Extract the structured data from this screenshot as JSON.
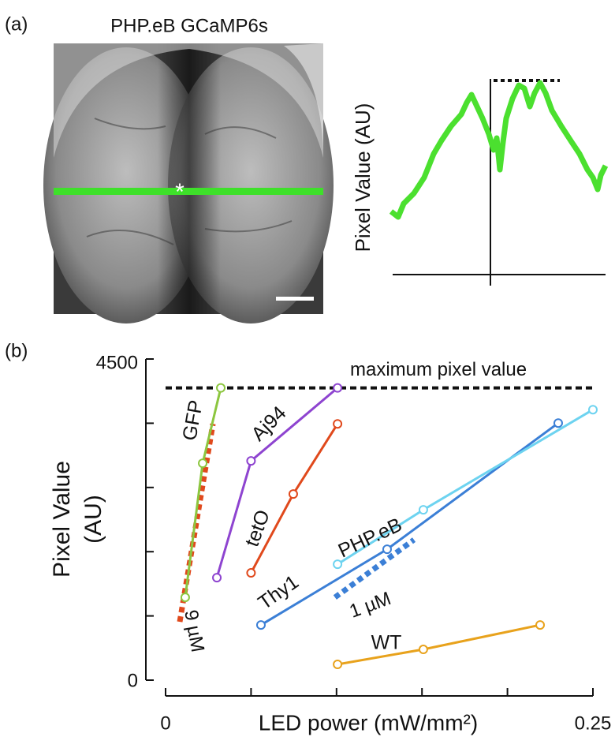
{
  "panel_a": {
    "label": "(a)",
    "title": "PHP.eB GCaMP6s",
    "ylabel": "Pixel Value (AU)"
  },
  "chart_data": {
    "type": "line",
    "label": "(b)",
    "xlabel": "LED power (mW/mm²)",
    "ylabel": [
      "Pixel Value",
      "(AU)"
    ],
    "xlim": [
      0,
      0.25
    ],
    "xticks": [
      0,
      0.25
    ],
    "xticks_minor": [
      0.05,
      0.1,
      0.15,
      0.2
    ],
    "ylim": [
      0,
      4500
    ],
    "yticks": [
      0,
      4500
    ],
    "yticks_minor": [
      900,
      1800,
      2700,
      3600
    ],
    "series": [
      {
        "name": "GFP",
        "color": "#8cc63f",
        "x": [
          0.0115,
          0.0217,
          0.0323
        ],
        "values": [
          1160,
          3039,
          4095
        ]
      },
      {
        "name": "Aj94",
        "color": "#8e44d0",
        "x": [
          0.03,
          0.05,
          0.1006
        ],
        "values": [
          1436,
          3072,
          4095
        ]
      },
      {
        "name": "tetO",
        "color": "#e0491c",
        "x": [
          0.05,
          0.0747,
          0.1006
        ],
        "values": [
          1503,
          2608,
          3591
        ]
      },
      {
        "name": "Thy1",
        "color": "#3b7fd6",
        "x": [
          0.0558,
          0.1296,
          0.2297
        ],
        "values": [
          773,
          1834,
          3602
        ]
      },
      {
        "name": "PHP.eB",
        "color": "#6dd3f0",
        "x": [
          0.1006,
          0.1508,
          0.25
        ],
        "values": [
          1624,
          2387,
          3790
        ]
      },
      {
        "name": "WT",
        "color": "#e8a21c",
        "x": [
          0.1006,
          0.1508,
          0.2191
        ],
        "values": [
          221,
          431,
          773
        ]
      }
    ],
    "reference_lines": [
      {
        "name": "9 µM",
        "color": "#e0491c",
        "x": [
          0.0083,
          0.0277
        ],
        "values": [
          818,
          3591
        ]
      },
      {
        "name": "1 µM",
        "color": "#3b7fd6",
        "x": [
          0.0991,
          0.1453
        ],
        "values": [
          1160,
          1967
        ]
      }
    ],
    "max_line": {
      "label": "maximum pixel value",
      "value": 4095
    }
  }
}
